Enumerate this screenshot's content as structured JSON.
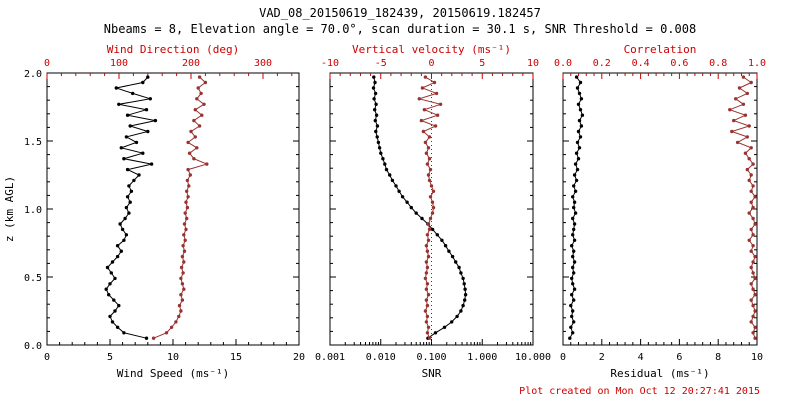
{
  "title_line1": "VAD_08_20150619_182439, 20150619.182457",
  "title_line2": "Nbeams = 8, Elevation angle = 70.0°, scan duration = 30.1 s, SNR Threshold = 0.008",
  "footer": "Plot created on Mon Oct 12 20:27:41 2015",
  "colors": {
    "axis_red": "#cc0000",
    "series_red": "#993330",
    "black": "#000000",
    "background": "#ffffff"
  },
  "chart_data": {
    "type": "scatter",
    "title": "VAD_08_20150619_182439, 20150619.182457",
    "subtitle": "Nbeams = 8, Elevation angle = 70.0°, scan duration = 30.1 s, SNR Threshold = 0.008",
    "ylabel": "z (km AGL)",
    "ylim": [
      0,
      2
    ],
    "yticks": [
      0,
      0.5,
      1,
      1.5,
      2
    ],
    "ytick_labels": [
      "0.0",
      "0.5",
      "1.0",
      "1.5",
      "2.0"
    ],
    "grid": false,
    "legend": "none",
    "z_km": [
      0.05,
      0.09,
      0.13,
      0.17,
      0.21,
      0.25,
      0.29,
      0.33,
      0.37,
      0.41,
      0.45,
      0.49,
      0.53,
      0.57,
      0.61,
      0.65,
      0.69,
      0.73,
      0.77,
      0.81,
      0.85,
      0.89,
      0.93,
      0.97,
      1.01,
      1.05,
      1.09,
      1.13,
      1.17,
      1.21,
      1.25,
      1.29,
      1.33,
      1.37,
      1.41,
      1.45,
      1.49,
      1.53,
      1.57,
      1.61,
      1.65,
      1.69,
      1.73,
      1.77,
      1.81,
      1.85,
      1.89,
      1.93,
      1.97
    ],
    "panels": [
      {
        "name": "wind-panel",
        "bottom_axis": {
          "label": "Wind Speed (ms⁻¹)",
          "scale": "linear",
          "range": [
            0,
            20
          ],
          "ticks": [
            0,
            5,
            10,
            15,
            20
          ],
          "tick_labels": [
            "0",
            "5",
            "10",
            "15",
            "20"
          ],
          "color": "black"
        },
        "top_axis": {
          "label": "Wind Direction (deg)",
          "scale": "linear",
          "range": [
            0,
            350
          ],
          "ticks": [
            0,
            100,
            200,
            300
          ],
          "tick_labels": [
            "0",
            "100",
            "200",
            "300"
          ],
          "color": "red"
        },
        "ref_lines": [],
        "series": [
          {
            "name": "wind_speed",
            "axis": "bottom",
            "color": "black",
            "values": [
              7.9,
              6.1,
              5.6,
              5.2,
              5.0,
              5.4,
              5.7,
              5.3,
              4.9,
              4.7,
              5.0,
              5.4,
              5.1,
              4.8,
              5.2,
              5.6,
              5.9,
              5.6,
              6.1,
              6.3,
              6.0,
              5.8,
              6.2,
              6.5,
              6.3,
              6.6,
              6.4,
              6.7,
              6.5,
              6.9,
              7.3,
              6.4,
              8.3,
              6.1,
              7.6,
              5.9,
              7.1,
              6.3,
              8.0,
              6.6,
              8.6,
              6.4,
              7.9,
              5.7,
              8.2,
              6.8,
              5.5,
              7.6,
              8.0
            ]
          },
          {
            "name": "wind_direction",
            "axis": "top",
            "color": "red",
            "values": [
              148,
              166,
              173,
              179,
              183,
              186,
              184,
              188,
              186,
              190,
              188,
              186,
              189,
              187,
              190,
              188,
              191,
              189,
              192,
              190,
              193,
              191,
              194,
              192,
              195,
              193,
              196,
              194,
              197,
              195,
              199,
              196,
              222,
              204,
              198,
              208,
              196,
              206,
              200,
              212,
              204,
              215,
              206,
              218,
              208,
              214,
              210,
              220,
              212
            ]
          }
        ]
      },
      {
        "name": "snr-panel",
        "bottom_axis": {
          "label": "SNR",
          "scale": "log",
          "range": [
            0.001,
            10
          ],
          "ticks": [
            0.001,
            0.01,
            0.1,
            1,
            10
          ],
          "tick_labels": [
            "0.001",
            "0.010",
            "0.100",
            "1.000",
            "10.000"
          ],
          "color": "black"
        },
        "top_axis": {
          "label": "Vertical velocity (ms⁻¹)",
          "scale": "linear",
          "range": [
            -10,
            10
          ],
          "ticks": [
            -10,
            -5,
            0,
            5,
            10
          ],
          "tick_labels": [
            "-10",
            "-5",
            "0",
            "5",
            "10"
          ],
          "color": "red"
        },
        "ref_lines": [
          {
            "axis": "top",
            "value": 0,
            "style": "dotted",
            "color": "red"
          }
        ],
        "series": [
          {
            "name": "snr",
            "axis": "bottom",
            "color": "black",
            "values": [
              0.085,
              0.12,
              0.18,
              0.25,
              0.32,
              0.38,
              0.42,
              0.45,
              0.47,
              0.46,
              0.44,
              0.42,
              0.38,
              0.35,
              0.3,
              0.26,
              0.22,
              0.19,
              0.16,
              0.13,
              0.105,
              0.085,
              0.065,
              0.05,
              0.04,
              0.033,
              0.027,
              0.023,
              0.02,
              0.017,
              0.015,
              0.013,
              0.012,
              0.011,
              0.01,
              0.0095,
              0.009,
              0.0085,
              0.008,
              0.0086,
              0.0078,
              0.0083,
              0.0076,
              0.0081,
              0.0074,
              0.0079,
              0.0072,
              0.0077,
              0.0073
            ]
          },
          {
            "name": "vertical_velocity",
            "axis": "top",
            "color": "red",
            "values": [
              -0.2,
              -0.4,
              -0.3,
              -0.5,
              -0.4,
              -0.6,
              -0.4,
              -0.5,
              -0.3,
              -0.5,
              -0.4,
              -0.6,
              -0.5,
              -0.4,
              -0.5,
              -0.3,
              -0.4,
              -0.5,
              -0.3,
              -0.4,
              -0.2,
              -0.3,
              -0.1,
              0.1,
              0.2,
              0.1,
              -0.1,
              0.2,
              0.0,
              -0.2,
              -0.3,
              -0.1,
              -0.4,
              -0.2,
              -0.5,
              -0.3,
              -0.6,
              -0.2,
              -0.8,
              0.4,
              -1.0,
              0.6,
              -0.7,
              0.9,
              -1.2,
              0.5,
              -0.9,
              0.3,
              -0.6
            ]
          }
        ]
      },
      {
        "name": "residual-panel",
        "bottom_axis": {
          "label": "Residual (ms⁻¹)",
          "scale": "linear",
          "range": [
            0,
            10
          ],
          "ticks": [
            0,
            2,
            4,
            6,
            8,
            10
          ],
          "tick_labels": [
            "0",
            "2",
            "4",
            "6",
            "8",
            "10"
          ],
          "color": "black"
        },
        "top_axis": {
          "label": "Correlation",
          "scale": "linear",
          "range": [
            0,
            1
          ],
          "ticks": [
            0,
            0.2,
            0.4,
            0.6,
            0.8,
            1.0
          ],
          "tick_labels": [
            "0.0",
            "0.2",
            "0.4",
            "0.6",
            "0.8",
            "1.0"
          ],
          "color": "red"
        },
        "ref_lines": [],
        "series": [
          {
            "name": "residual",
            "axis": "bottom",
            "color": "black",
            "values": [
              0.35,
              0.5,
              0.4,
              0.55,
              0.45,
              0.5,
              0.4,
              0.55,
              0.45,
              0.6,
              0.5,
              0.45,
              0.55,
              0.5,
              0.6,
              0.5,
              0.55,
              0.45,
              0.6,
              0.5,
              0.55,
              0.6,
              0.5,
              0.65,
              0.55,
              0.6,
              0.5,
              0.65,
              0.55,
              0.7,
              0.6,
              0.75,
              0.65,
              0.8,
              0.7,
              0.85,
              0.75,
              0.9,
              0.8,
              0.95,
              0.85,
              1.0,
              0.9,
              0.8,
              0.95,
              0.85,
              0.75,
              0.9,
              0.7
            ]
          },
          {
            "name": "correlation",
            "axis": "top",
            "color": "red",
            "values": [
              0.99,
              0.98,
              0.99,
              0.97,
              0.98,
              0.99,
              0.98,
              0.97,
              0.99,
              0.98,
              0.97,
              0.99,
              0.98,
              0.97,
              0.98,
              0.99,
              0.97,
              0.98,
              0.96,
              0.98,
              0.97,
              0.99,
              0.98,
              0.96,
              0.98,
              0.97,
              0.99,
              0.97,
              0.98,
              0.96,
              0.97,
              0.95,
              0.98,
              0.96,
              0.94,
              0.97,
              0.9,
              0.95,
              0.87,
              0.96,
              0.88,
              0.94,
              0.86,
              0.93,
              0.89,
              0.95,
              0.91,
              0.97,
              0.93
            ]
          }
        ]
      }
    ]
  }
}
